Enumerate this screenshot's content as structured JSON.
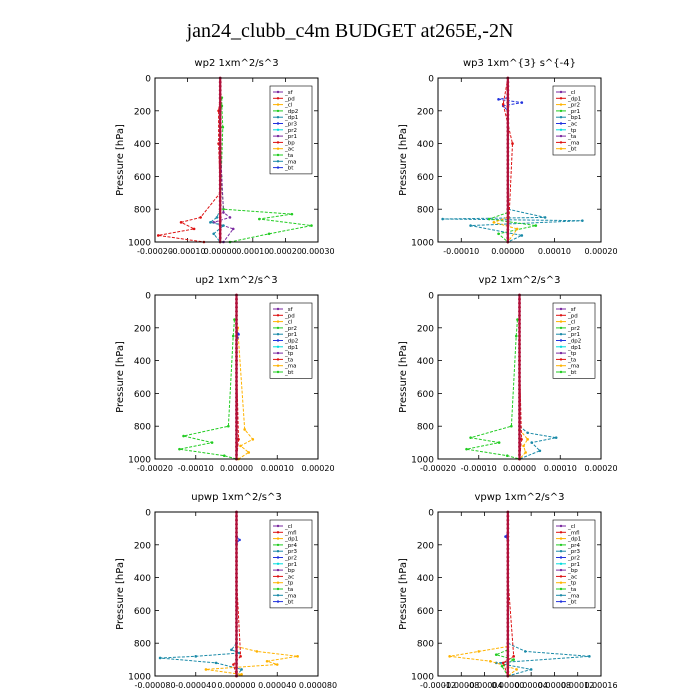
{
  "title": "jan24_clubb_c4m  BUDGET at265E,-2N",
  "chart_data": [
    {
      "type": "line",
      "title": "wp2   1xm^2/s^3",
      "ylabel": "Pressure [hPa]",
      "ylim": [
        1000,
        0
      ],
      "yticks": [
        "0",
        "200",
        "400",
        "600",
        "800",
        "1000"
      ],
      "xticks": [
        "-0.00020",
        "-0.00010",
        "0.00000",
        "0.00010",
        "0.00020",
        "0.00030"
      ],
      "xlim": [
        -0.0002,
        0.0003
      ],
      "legend": [
        "_sf",
        "_pd",
        "_cl",
        "_dp2",
        "_dp1",
        "_pr3",
        "_pr2",
        "_pr1",
        "_bp",
        "_ac",
        "_ta",
        "_ma",
        "_bt"
      ],
      "series": [
        {
          "name": "_pr1",
          "color": "#22cc22",
          "x": [
            5e-06,
            5e-06,
            8e-06,
            3e-06,
            1e-05,
            0.00022,
            0.00012,
            0.00028,
            0.00015,
            3e-05
          ],
          "y": [
            120,
            170,
            300,
            600,
            800,
            830,
            860,
            900,
            950,
            1000
          ]
        },
        {
          "name": "_dp1",
          "color": "#dd1111",
          "x": [
            0,
            -5e-06,
            -5e-06,
            0,
            -6e-05,
            -0.00012,
            -8e-05,
            -0.00019,
            -5e-05
          ],
          "y": [
            120,
            200,
            400,
            700,
            850,
            880,
            920,
            960,
            1000
          ]
        },
        {
          "name": "_pd",
          "color": "#7a2aa0",
          "x": [
            0,
            0,
            1e-05,
            3e-05,
            -2e-05,
            4e-05,
            1e-05
          ],
          "y": [
            120,
            400,
            820,
            850,
            880,
            920,
            1000
          ]
        },
        {
          "name": "_bp",
          "color": "#1a8aa8",
          "x": [
            0,
            -1e-05,
            -3e-05,
            1e-05,
            -2e-05,
            0
          ],
          "y": [
            800,
            850,
            880,
            900,
            950,
            1000
          ]
        }
      ]
    },
    {
      "type": "line",
      "title": "wp3   1xm^{3} s^{-4}",
      "ylabel": "Pressure [hPa]",
      "ylim": [
        1000,
        0
      ],
      "yticks": [
        "0",
        "200",
        "400",
        "600",
        "800",
        "1000"
      ],
      "xticks": [
        "-0.00010",
        "0.00000",
        "0.00010",
        "0.00020"
      ],
      "xlim": [
        -0.00015,
        0.0002
      ],
      "legend": [
        "_cl",
        "_dp1",
        "_pr2",
        "_pr1",
        "_bp1",
        "_ac",
        "_tp",
        "_ta",
        "_ma",
        "_bt"
      ],
      "series": [
        {
          "name": "_ta",
          "color": "#2233dd",
          "x": [
            0,
            -2e-05,
            3e-05,
            -1e-05,
            0
          ],
          "y": [
            120,
            130,
            150,
            170,
            200
          ]
        },
        {
          "name": "_bp1",
          "color": "#1a8aa8",
          "x": [
            0,
            8e-05,
            -0.00014,
            0.00016,
            -8e-05,
            3e-05,
            0
          ],
          "y": [
            800,
            850,
            860,
            870,
            900,
            960,
            1000
          ]
        },
        {
          "name": "_pr1",
          "color": "#22cc22",
          "x": [
            0,
            -4e-05,
            6e-05,
            -2e-05,
            0
          ],
          "y": [
            820,
            860,
            900,
            950,
            1000
          ]
        },
        {
          "name": "_pr2",
          "color": "#ffb300",
          "x": [
            0,
            -3e-05,
            2e-05,
            0
          ],
          "y": [
            850,
            880,
            920,
            1000
          ]
        },
        {
          "name": "_dp1",
          "color": "#dd1111",
          "x": [
            0,
            -1e-05,
            1e-05,
            0
          ],
          "y": [
            0,
            160,
            400,
            1000
          ]
        }
      ]
    },
    {
      "type": "line",
      "title": "up2   1xm^2/s^3",
      "ylabel": "Pressure [hPa]",
      "ylim": [
        1000,
        0
      ],
      "yticks": [
        "0",
        "200",
        "400",
        "600",
        "800",
        "1000"
      ],
      "xticks": [
        "-0.00020",
        "-0.00010",
        "0.00000",
        "0.00010",
        "0.00020"
      ],
      "xlim": [
        -0.0002,
        0.0002
      ],
      "legend": [
        "_sf",
        "_pd",
        "_cl",
        "_pr2",
        "_pr1",
        "_dp2",
        "_dp1",
        "_tp",
        "_ta",
        "_ma",
        "_bt"
      ],
      "series": [
        {
          "name": "_dp2",
          "color": "#22cc22",
          "x": [
            -5e-06,
            -8e-06,
            -2e-05,
            -0.00013,
            -6e-05,
            -0.00014,
            -3e-05,
            0
          ],
          "y": [
            150,
            250,
            800,
            860,
            900,
            940,
            980,
            1000
          ]
        },
        {
          "name": "_pr2",
          "color": "#ffb300",
          "x": [
            3e-06,
            2e-05,
            4e-05,
            1e-05,
            3e-05,
            5e-06
          ],
          "y": [
            200,
            820,
            880,
            920,
            960,
            1000
          ]
        },
        {
          "name": "_tp",
          "color": "#2233dd",
          "x": [
            0,
            5e-06,
            2e-06
          ],
          "y": [
            200,
            240,
            260
          ]
        },
        {
          "name": "_dp1",
          "color": "#dd1111",
          "x": [
            0,
            0,
            5e-06,
            0
          ],
          "y": [
            0,
            400,
            880,
            1000
          ]
        }
      ]
    },
    {
      "type": "line",
      "title": "vp2   1xm^2/s^3",
      "ylabel": "Pressure [hPa]",
      "ylim": [
        1000,
        0
      ],
      "yticks": [
        "0",
        "200",
        "400",
        "600",
        "800",
        "1000"
      ],
      "xticks": [
        "-0.00020",
        "-0.00010",
        "0.00000",
        "0.00010",
        "0.00020"
      ],
      "xlim": [
        -0.0002,
        0.0002
      ],
      "legend": [
        "_sf",
        "_pd",
        "_cl",
        "_pr2",
        "_pr1",
        "_dp2",
        "_dp1",
        "_tp",
        "_ta",
        "_ma",
        "_bt"
      ],
      "series": [
        {
          "name": "_dp2",
          "color": "#22cc22",
          "x": [
            -5e-06,
            -8e-06,
            -2e-05,
            -0.00012,
            -5e-05,
            -0.00013,
            -3e-05,
            0
          ],
          "y": [
            150,
            250,
            800,
            870,
            900,
            940,
            980,
            1000
          ]
        },
        {
          "name": "_tp",
          "color": "#1a8aa8",
          "x": [
            0,
            2e-05,
            9e-05,
            3e-05,
            5e-05,
            0
          ],
          "y": [
            800,
            840,
            870,
            900,
            950,
            1000
          ]
        },
        {
          "name": "_pr2",
          "color": "#ffb300",
          "x": [
            0,
            2e-05,
            1e-05,
            1.5e-05,
            0
          ],
          "y": [
            820,
            880,
            920,
            960,
            1000
          ]
        },
        {
          "name": "_dp1",
          "color": "#dd1111",
          "x": [
            0,
            0,
            5e-06,
            0
          ],
          "y": [
            0,
            400,
            880,
            1000
          ]
        }
      ]
    },
    {
      "type": "line",
      "title": "upwp   1xm^2/s^3",
      "ylabel": "Pressure [hPa]",
      "ylim": [
        1000,
        0
      ],
      "yticks": [
        "0",
        "200",
        "400",
        "600",
        "800",
        "1000"
      ],
      "xticks": [
        "-0.000080",
        "-0.000040",
        "0.000000",
        "0.000040",
        "0.000080"
      ],
      "xlim": [
        -8e-05,
        8e-05
      ],
      "legend": [
        "_cl",
        "_mfl",
        "_dp1",
        "_pr4",
        "_pr3",
        "_pr2",
        "_pr1",
        "_bp",
        "_ac",
        "_tp",
        "_ta",
        "_ma",
        "_bt"
      ],
      "series": [
        {
          "name": "_tp",
          "color": "#1a8aa8",
          "x": [
            0,
            -5e-06,
            3e-06,
            -4e-05,
            -7.5e-05,
            -2e-05,
            5e-06,
            0
          ],
          "y": [
            800,
            840,
            860,
            880,
            890,
            920,
            960,
            1000
          ]
        },
        {
          "name": "_pr1",
          "color": "#ffb300",
          "x": [
            0,
            2e-05,
            6e-05,
            3e-05,
            4e-05,
            -3e-05,
            5e-06,
            0
          ],
          "y": [
            820,
            850,
            880,
            910,
            930,
            960,
            990,
            1000
          ]
        },
        {
          "name": "_ta",
          "color": "#2233dd",
          "x": [
            0,
            3e-06,
            0
          ],
          "y": [
            150,
            170,
            190
          ]
        },
        {
          "name": "_dp1",
          "color": "#dd1111",
          "x": [
            0,
            0,
            4e-06,
            -3e-06,
            0
          ],
          "y": [
            0,
            400,
            880,
            930,
            1000
          ]
        }
      ]
    },
    {
      "type": "line",
      "title": "vpwp   1xm^2/s^3",
      "ylabel": "Pressure [hPa]",
      "ylim": [
        1000,
        0
      ],
      "yticks": [
        "0",
        "200",
        "400",
        "600",
        "800",
        "1000"
      ],
      "xticks": [
        "-0.00012",
        "-0.00008",
        "-0.00004",
        "0.00000",
        "0.00004",
        "0.00008",
        "0.00012",
        "0.00016"
      ],
      "xlim": [
        -0.00012,
        0.00016
      ],
      "legend": [
        "_cl",
        "_mfl",
        "_dp1",
        "_pr4",
        "_pr3",
        "_pr2",
        "_pr1",
        "_bp",
        "_ac",
        "_tp",
        "_ta",
        "_ma",
        "_bt"
      ],
      "series": [
        {
          "name": "_tp",
          "color": "#1a8aa8",
          "x": [
            0,
            3e-05,
            0.00014,
            -2e-05,
            4e-05,
            0
          ],
          "y": [
            800,
            850,
            880,
            920,
            960,
            1000
          ]
        },
        {
          "name": "_pr1",
          "color": "#ffb300",
          "x": [
            0,
            -5e-05,
            -0.0001,
            -3e-05,
            1.5e-05,
            0
          ],
          "y": [
            820,
            850,
            880,
            910,
            960,
            1000
          ]
        },
        {
          "name": "_bp",
          "color": "#22cc22",
          "x": [
            0,
            -2e-05,
            1e-05,
            -1e-05,
            0
          ],
          "y": [
            840,
            870,
            900,
            940,
            1000
          ]
        },
        {
          "name": "_dp1",
          "color": "#dd1111",
          "x": [
            0,
            0,
            1e-05,
            -8e-06,
            0
          ],
          "y": [
            0,
            400,
            880,
            920,
            1000
          ]
        },
        {
          "name": "_ta",
          "color": "#2233dd",
          "x": [
            0,
            -4e-06,
            0
          ],
          "y": [
            130,
            150,
            170
          ]
        }
      ]
    }
  ],
  "legend_colors": [
    "#7a2aa0",
    "#dd1111",
    "#ffb300",
    "#22cc22",
    "#1a8aa8",
    "#2233dd",
    "#00dddd"
  ]
}
